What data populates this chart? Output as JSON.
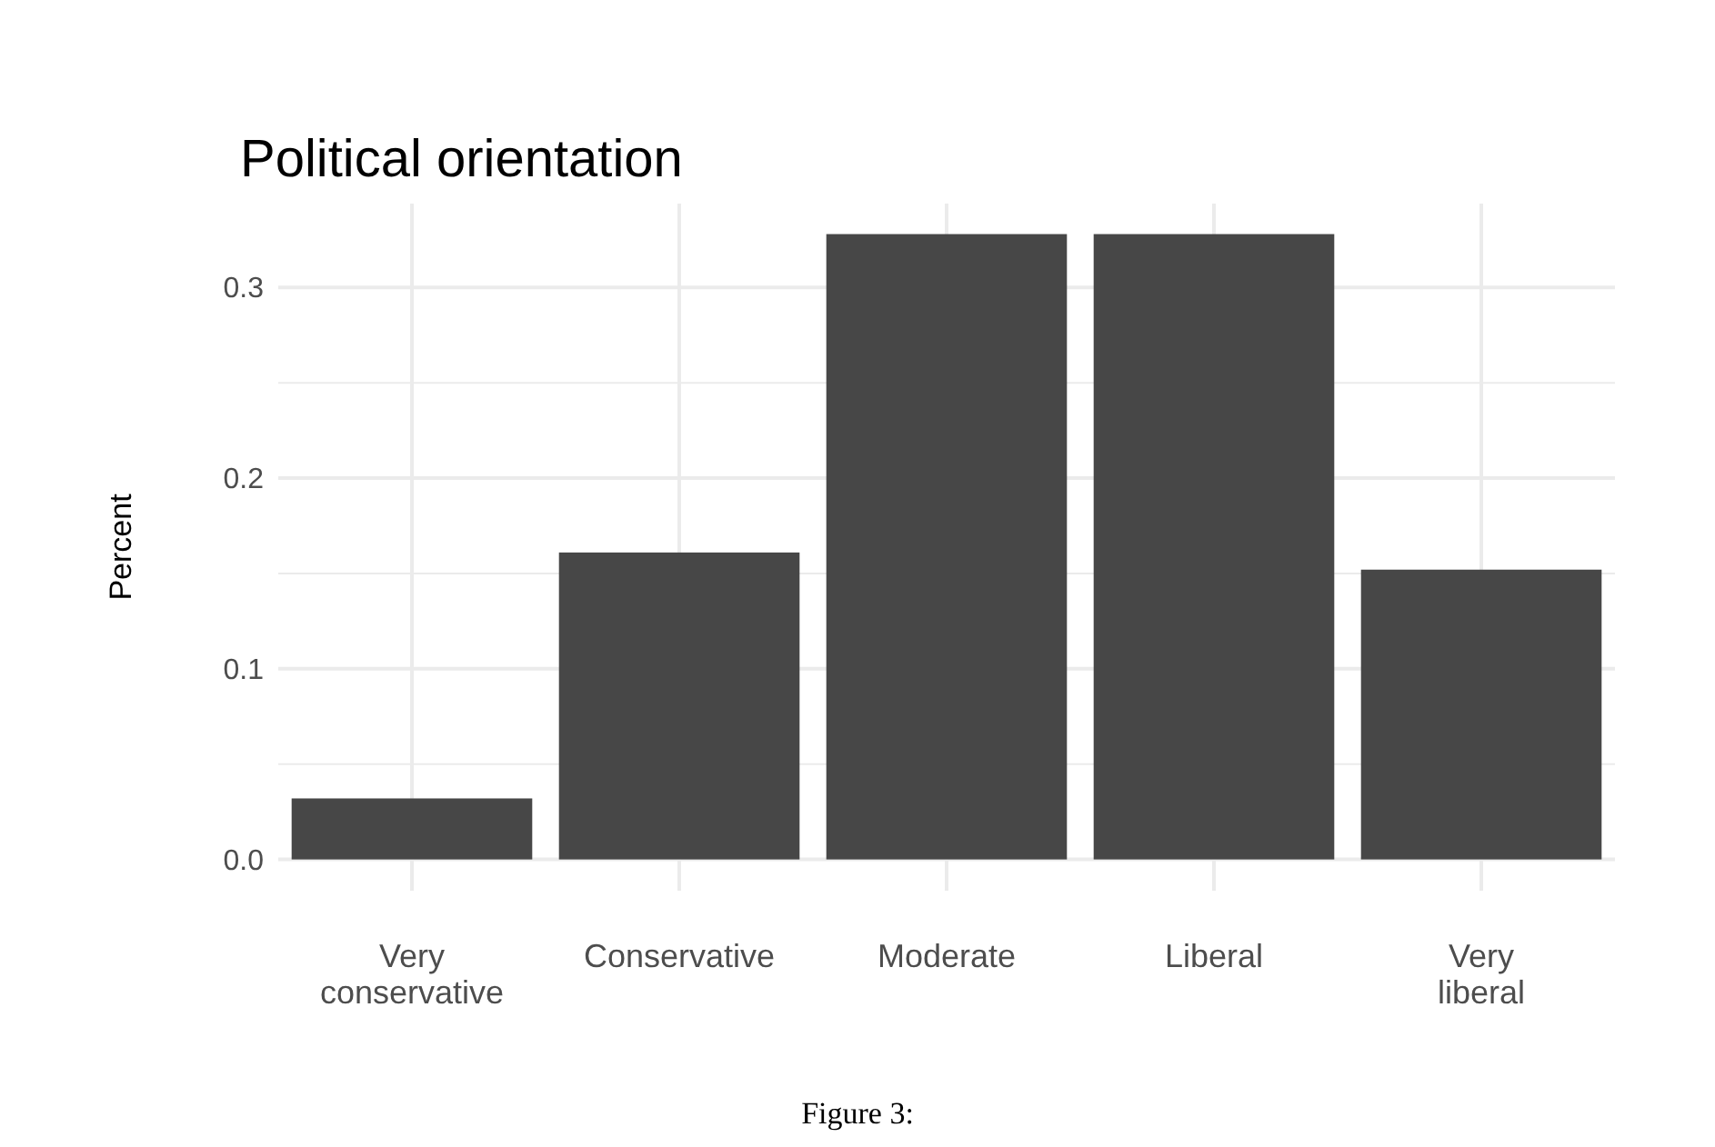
{
  "chart_data": {
    "type": "bar",
    "title": "Political orientation",
    "ylabel": "Percent",
    "categories": [
      "Very\nconservative",
      "Conservative",
      "Moderate",
      "Liberal",
      "Very\nliberal"
    ],
    "values": [
      0.032,
      0.161,
      0.328,
      0.328,
      0.152
    ],
    "color": "#474747",
    "ylim": [
      -0.0164,
      0.344
    ],
    "yticks": [
      {
        "value": 0,
        "label": "0.0"
      },
      {
        "value": 0.05,
        "label": null
      },
      {
        "value": 0.1,
        "label": "0.1"
      },
      {
        "value": 0.15,
        "label": null
      },
      {
        "value": 0.2,
        "label": "0.2"
      },
      {
        "value": 0.25,
        "label": null
      },
      {
        "value": 0.3,
        "label": "0.3"
      }
    ],
    "grid": true,
    "annotations": [
      "Figure 3:"
    ]
  }
}
